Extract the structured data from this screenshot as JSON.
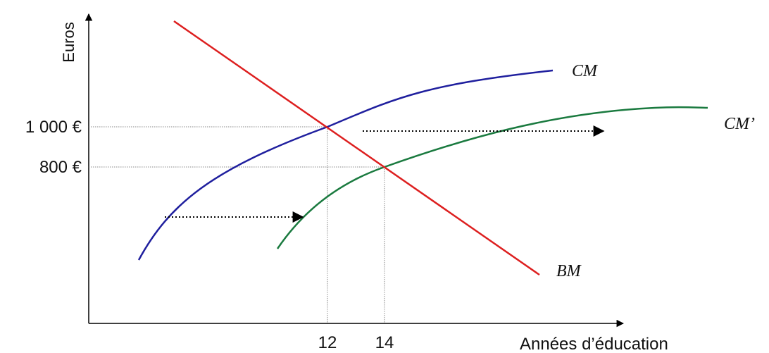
{
  "y_axis_label": "Euros",
  "x_axis_label": "Années d’éducation",
  "y_levels": [
    {
      "label": "1 000 €",
      "value": 1000
    },
    {
      "label": "800 €",
      "value": 800
    }
  ],
  "x_levels": [
    {
      "label": "12",
      "value": 12
    },
    {
      "label": "14",
      "value": 14
    }
  ],
  "curves": {
    "cm": {
      "label": "CM",
      "color": "#1f1f9e"
    },
    "cm_prime": {
      "label": "CM’",
      "color": "#1a7a3f"
    },
    "bm": {
      "label": "BM",
      "color": "#dd1f1f"
    }
  },
  "colors": {
    "axis": "#000000",
    "guide": "#888888",
    "shift_arrow": "#000000"
  }
}
